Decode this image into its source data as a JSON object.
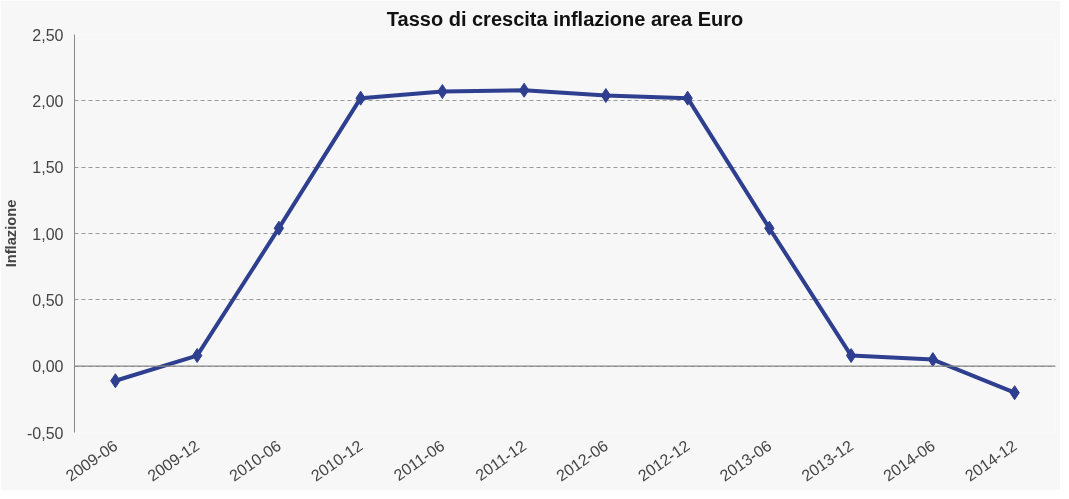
{
  "chart_data": {
    "type": "line",
    "title": "Tasso di crescita inflazione area Euro",
    "ylabel": "Inflazione",
    "categories": [
      "2009-06",
      "2009-12",
      "2010-06",
      "2010-12",
      "2011-06",
      "2011-12",
      "2012-06",
      "2012-12",
      "2013-06",
      "2013-12",
      "2014-06",
      "2014-12"
    ],
    "series": [
      {
        "color": "#2e3f8f",
        "values": [
          -0.11,
          0.08,
          1.04,
          2.02,
          2.07,
          2.08,
          2.04,
          2.02,
          1.04,
          0.08,
          0.05,
          -0.2
        ]
      }
    ],
    "ylim": [
      -0.5,
      2.5
    ],
    "yticks": [
      {
        "value": -0.5,
        "label": "-0,50"
      },
      {
        "value": 0,
        "label": "0,00"
      },
      {
        "value": 0.5,
        "label": "0,50"
      },
      {
        "value": 1,
        "label": "1,00"
      },
      {
        "value": 1.5,
        "label": "1,50"
      },
      {
        "value": 2,
        "label": "2,00"
      },
      {
        "value": 2.5,
        "label": "2,50"
      }
    ],
    "grid": "y",
    "marker": "diamond",
    "line_style": "solid"
  }
}
